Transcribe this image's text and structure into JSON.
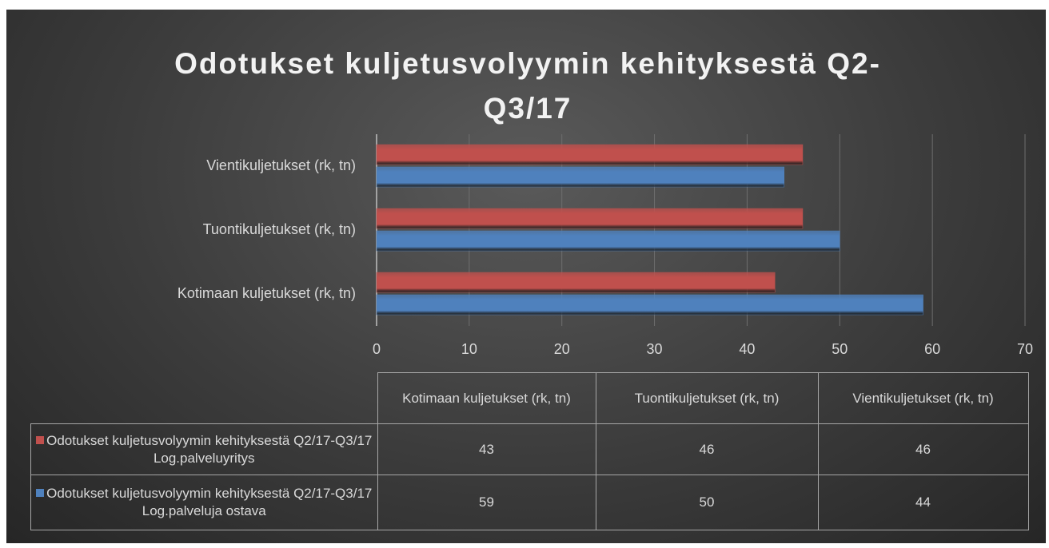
{
  "chart_data": {
    "type": "hbar",
    "title": "Odotukset kuljetusvolyymin kehityksestä Q2-Q3/17",
    "categories": [
      "Kotimaan kuljetukset (rk, tn)",
      "Tuontikuljetukset (rk, tn)",
      "Vientikuljetukset (rk, tn)"
    ],
    "series": [
      {
        "name": "Odotukset kuljetusvolyymin kehityksestä Q2/17-Q3/17 Log.palveluyritys",
        "color": "#c0504d",
        "values": [
          43,
          46,
          46
        ]
      },
      {
        "name": "Odotukset kuljetusvolyymin kehityksestä Q2/17-Q3/17 Log.palveluja ostava",
        "color": "#4f81bd",
        "values": [
          59,
          50,
          44
        ]
      }
    ],
    "xlim": [
      0,
      70
    ],
    "xticks": [
      0,
      10,
      20,
      30,
      40,
      50,
      60,
      70
    ],
    "grid": true
  }
}
